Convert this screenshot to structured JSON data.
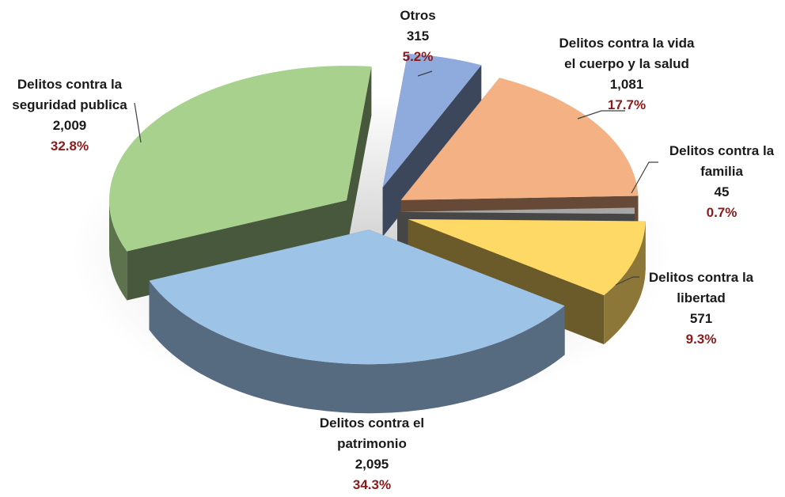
{
  "chart_data": {
    "type": "pie",
    "style": "3d-exploded",
    "legend": "none",
    "slices": [
      {
        "key": "otros",
        "label_lines": [
          "Otros"
        ],
        "value_text": "315",
        "value": 315,
        "percent_text": "5.2%",
        "percent": 5.2,
        "color": "#8faadc"
      },
      {
        "key": "vida",
        "label_lines": [
          "Delitos contra la vida",
          "el cuerpo y la salud"
        ],
        "value_text": "1,081",
        "value": 1081,
        "percent_text": "17.7%",
        "percent": 17.7,
        "color": "#f4b183"
      },
      {
        "key": "familia",
        "label_lines": [
          "Delitos contra la",
          "familia"
        ],
        "value_text": "45",
        "value": 45,
        "percent_text": "0.7%",
        "percent": 0.7,
        "color": "#a6a6a6"
      },
      {
        "key": "libertad",
        "label_lines": [
          "Delitos contra la",
          "libertad"
        ],
        "value_text": "571",
        "value": 571,
        "percent_text": "9.3%",
        "percent": 9.3,
        "color": "#ffd966"
      },
      {
        "key": "patrimonio",
        "label_lines": [
          "Delitos contra el",
          "patrimonio"
        ],
        "value_text": "2,095",
        "value": 2095,
        "percent_text": "34.3%",
        "percent": 34.3,
        "color": "#9dc3e6"
      },
      {
        "key": "seguridad",
        "label_lines": [
          "Delitos contra la",
          "seguridad publica"
        ],
        "value_text": "2,009",
        "value": 2009,
        "percent_text": "32.8%",
        "percent": 32.8,
        "color": "#a9d18e"
      }
    ]
  }
}
